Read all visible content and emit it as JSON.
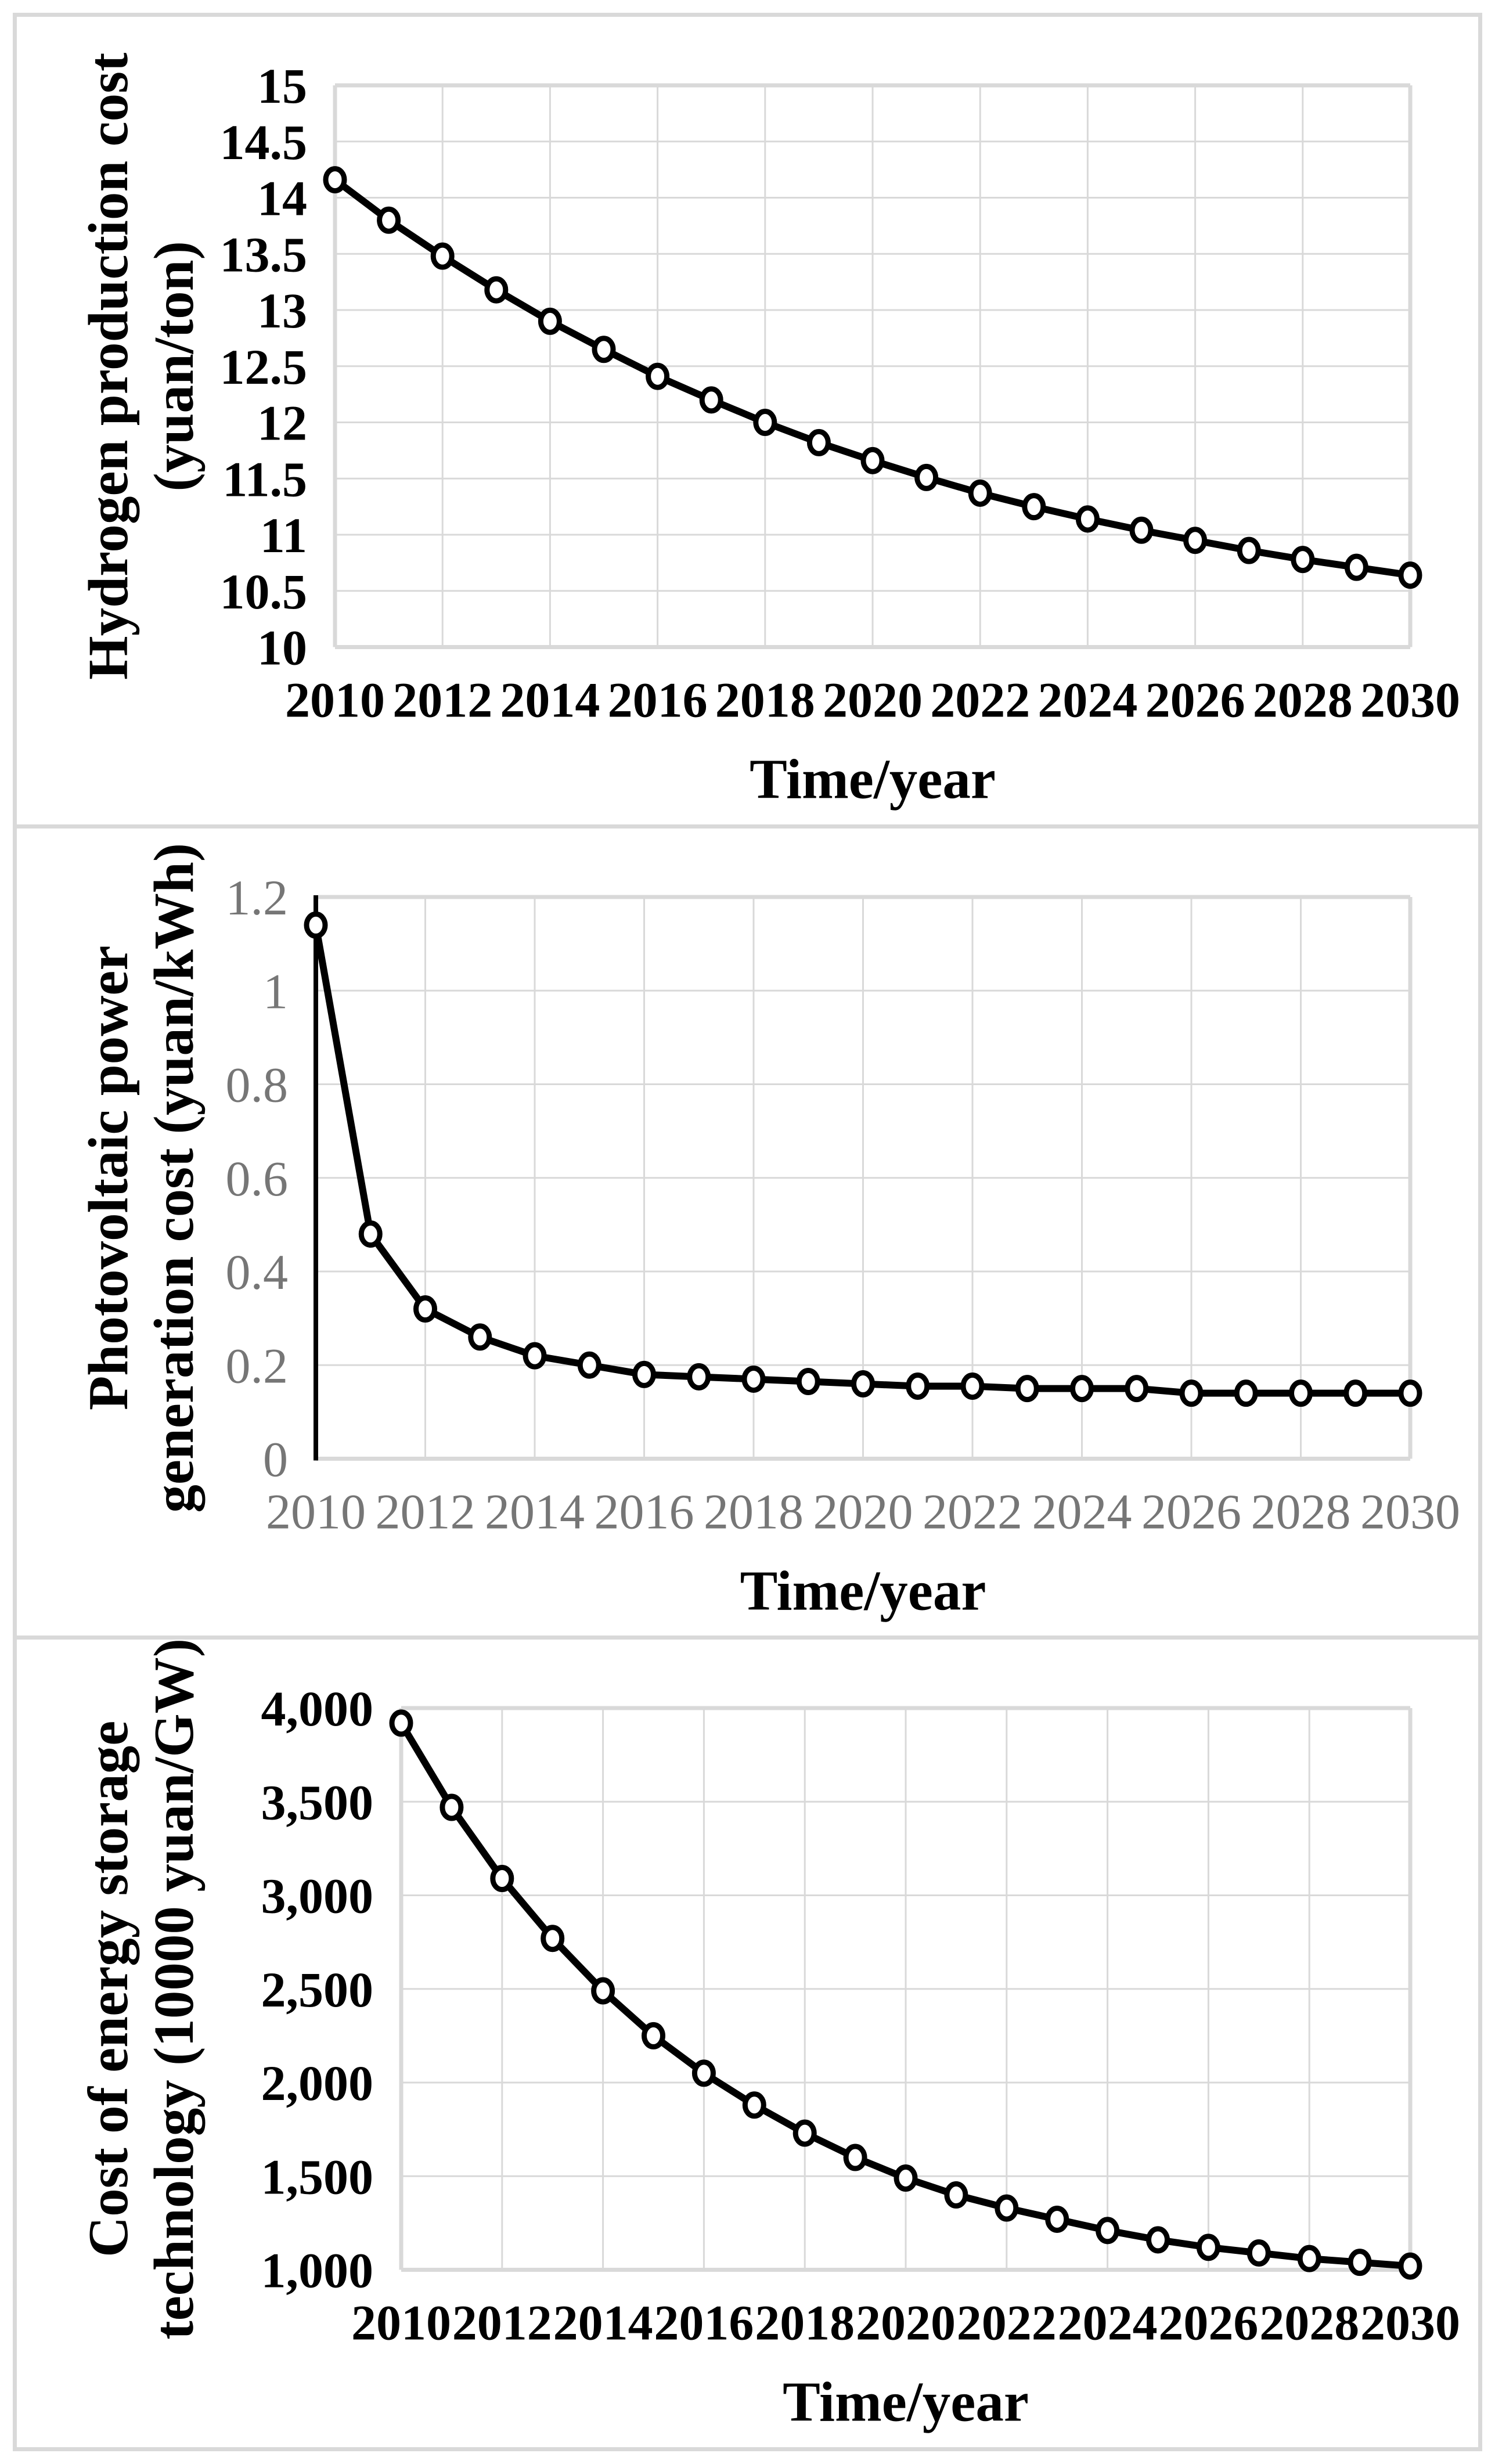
{
  "page": {
    "background": "#ffffff",
    "frame_border_color": "#d9d9d9",
    "gridline_color": "#d9d9d9",
    "plot_border_color": "#d3d3d3",
    "series_line_color": "#000000",
    "marker_fill": "#ffffff",
    "marker_stroke": "#000000",
    "gray_tick_color": "#767676",
    "black_tick_color": "#000000"
  },
  "chart_data": [
    {
      "type": "line",
      "name": "hydrogen-production-cost",
      "ylabel_lines": [
        "Hydrogen production cost",
        "(yuan/ton)"
      ],
      "xlabel": "Time/year",
      "x": [
        2010,
        2011,
        2012,
        2013,
        2014,
        2015,
        2016,
        2017,
        2018,
        2019,
        2020,
        2021,
        2022,
        2023,
        2024,
        2025,
        2026,
        2027,
        2028,
        2029,
        2030
      ],
      "values": [
        14.16,
        13.8,
        13.48,
        13.18,
        12.9,
        12.65,
        12.41,
        12.2,
        12.0,
        11.82,
        11.66,
        11.51,
        11.37,
        11.25,
        11.14,
        11.04,
        10.95,
        10.86,
        10.78,
        10.71,
        10.64
      ],
      "ylim": [
        10,
        15
      ],
      "ystep": 0.5,
      "ytick_labels": [
        "15",
        "14.5",
        "14",
        "13.5",
        "13",
        "12.5",
        "12",
        "11.5",
        "11",
        "10.5",
        "10"
      ],
      "xtick_labels": [
        "2010",
        "2012",
        "2014",
        "2016",
        "2018",
        "2020",
        "2022",
        "2024",
        "2026",
        "2028",
        "2030"
      ],
      "grid": true,
      "legend": "none",
      "tick_color": "#000000",
      "tick_weight": "700",
      "y_axis_line": false,
      "plot_left": 548
    },
    {
      "type": "line",
      "name": "photovoltaic-generation-cost",
      "ylabel_lines": [
        "Photovoltaic power",
        "generation cost (yuan/kWh)"
      ],
      "xlabel": "Time/year",
      "x": [
        2010,
        2011,
        2012,
        2013,
        2014,
        2015,
        2016,
        2017,
        2018,
        2019,
        2020,
        2021,
        2022,
        2023,
        2024,
        2025,
        2026,
        2027,
        2028,
        2029,
        2030
      ],
      "values": [
        1.14,
        0.48,
        0.32,
        0.26,
        0.22,
        0.2,
        0.18,
        0.175,
        0.17,
        0.165,
        0.16,
        0.155,
        0.155,
        0.15,
        0.15,
        0.15,
        0.14,
        0.14,
        0.14,
        0.14,
        0.14
      ],
      "ylim": [
        0,
        1.2
      ],
      "ystep": 0.2,
      "ytick_labels": [
        "1.2",
        "1",
        "0.8",
        "0.6",
        "0.4",
        "0.2",
        "0"
      ],
      "xtick_labels": [
        "2010",
        "2012",
        "2014",
        "2016",
        "2018",
        "2020",
        "2022",
        "2024",
        "2026",
        "2028",
        "2030"
      ],
      "grid": true,
      "legend": "none",
      "tick_color": "#767676",
      "tick_weight": "400",
      "y_axis_line": true,
      "plot_left": 515
    },
    {
      "type": "line",
      "name": "energy-storage-technology-cost",
      "ylabel_lines": [
        "Cost of energy storage",
        "technology (10000 yuan/GW)"
      ],
      "xlabel": "Time/year",
      "x": [
        2010,
        2011,
        2012,
        2013,
        2014,
        2015,
        2016,
        2017,
        2018,
        2019,
        2020,
        2021,
        2022,
        2023,
        2024,
        2025,
        2026,
        2027,
        2028,
        2029,
        2030
      ],
      "values": [
        3920,
        3470,
        3090,
        2770,
        2490,
        2250,
        2050,
        1880,
        1730,
        1600,
        1490,
        1400,
        1330,
        1270,
        1210,
        1160,
        1120,
        1090,
        1060,
        1040,
        1020
      ],
      "ylim": [
        1000,
        4000
      ],
      "ystep": 500,
      "ytick_labels": [
        "4,000",
        "3,500",
        "3,000",
        "2,500",
        "2,000",
        "1,500",
        "1,000"
      ],
      "xtick_labels": [
        "2010",
        "2012",
        "2014",
        "2016",
        "2018",
        "2020",
        "2022",
        "2024",
        "2026",
        "2028",
        "2030"
      ],
      "grid": true,
      "legend": "none",
      "tick_color": "#000000",
      "tick_weight": "700",
      "y_axis_line": false,
      "plot_left": 662
    }
  ]
}
